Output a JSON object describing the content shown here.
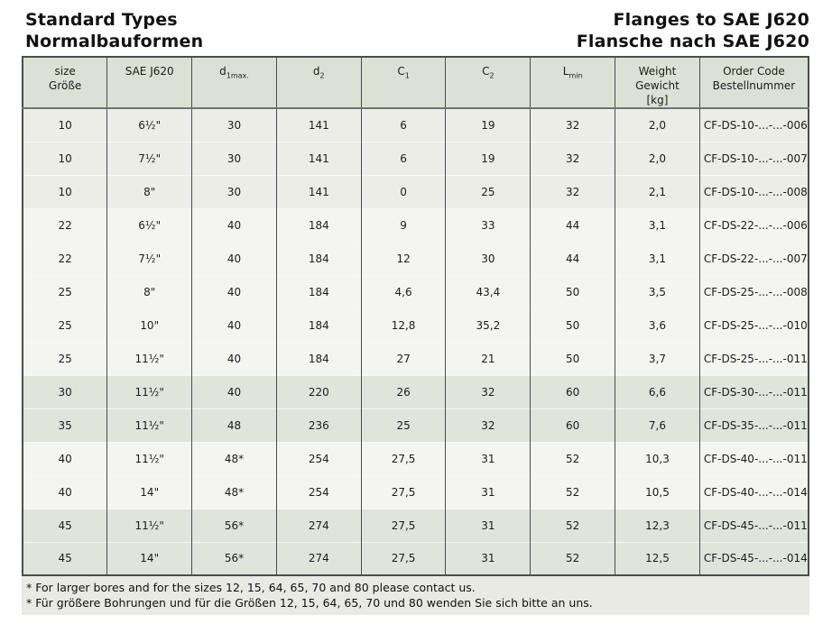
{
  "page": {
    "title_left_line1": "Standard Types",
    "title_left_line2": "Normalbauformen",
    "title_right_line1": "Flanges to SAE J620",
    "title_right_line2": "Flansche nach SAE J620"
  },
  "table": {
    "columns": [
      {
        "lines": [
          "size",
          "Größe"
        ]
      },
      {
        "lines": [
          "SAE J620"
        ]
      },
      {
        "base": "d",
        "sub": "1max."
      },
      {
        "base": "d",
        "sub": "2"
      },
      {
        "base": "C",
        "sub": "1"
      },
      {
        "base": "C",
        "sub": "2"
      },
      {
        "base": "L",
        "sub": "min"
      },
      {
        "lines": [
          "Weight",
          "Gewicht",
          "[kg]"
        ]
      },
      {
        "lines": [
          "Order Code",
          "Bestellnummer"
        ]
      }
    ],
    "rows": [
      {
        "band": "a",
        "cells": [
          "10",
          "6½\"",
          "30",
          "141",
          "6",
          "19",
          "32",
          "2,0",
          "CF-DS-10-...-...-006"
        ]
      },
      {
        "band": "a",
        "cells": [
          "10",
          "7½\"",
          "30",
          "141",
          "6",
          "19",
          "32",
          "2,0",
          "CF-DS-10-...-...-007"
        ]
      },
      {
        "band": "a",
        "cells": [
          "10",
          "8\"",
          "30",
          "141",
          "0",
          "25",
          "32",
          "2,1",
          "CF-DS-10-...-...-008"
        ]
      },
      {
        "band": "b",
        "cells": [
          "22",
          "6½\"",
          "40",
          "184",
          "9",
          "33",
          "44",
          "3,1",
          "CF-DS-22-...-...-006"
        ]
      },
      {
        "band": "b",
        "cells": [
          "22",
          "7½\"",
          "40",
          "184",
          "12",
          "30",
          "44",
          "3,1",
          "CF-DS-22-...-...-007"
        ]
      },
      {
        "band": "b",
        "cells": [
          "25",
          "8\"",
          "40",
          "184",
          "4,6",
          "43,4",
          "50",
          "3,5",
          "CF-DS-25-...-...-008"
        ]
      },
      {
        "band": "b",
        "cells": [
          "25",
          "10\"",
          "40",
          "184",
          "12,8",
          "35,2",
          "50",
          "3,6",
          "CF-DS-25-...-...-010"
        ]
      },
      {
        "band": "b",
        "cells": [
          "25",
          "11½\"",
          "40",
          "184",
          "27",
          "21",
          "50",
          "3,7",
          "CF-DS-25-...-...-011"
        ]
      },
      {
        "band": "c",
        "cells": [
          "30",
          "11½\"",
          "40",
          "220",
          "26",
          "32",
          "60",
          "6,6",
          "CF-DS-30-...-...-011"
        ]
      },
      {
        "band": "c",
        "cells": [
          "35",
          "11½\"",
          "48",
          "236",
          "25",
          "32",
          "60",
          "7,6",
          "CF-DS-35-...-...-011"
        ]
      },
      {
        "band": "b",
        "cells": [
          "40",
          "11½\"",
          "48*",
          "254",
          "27,5",
          "31",
          "52",
          "10,3",
          "CF-DS-40-...-...-011"
        ]
      },
      {
        "band": "b",
        "cells": [
          "40",
          "14\"",
          "48*",
          "254",
          "27,5",
          "31",
          "52",
          "10,5",
          "CF-DS-40-...-...-014"
        ]
      },
      {
        "band": "c",
        "cells": [
          "45",
          "11½\"",
          "56*",
          "274",
          "27,5",
          "31",
          "52",
          "12,3",
          "CF-DS-45-...-...-011"
        ]
      },
      {
        "band": "c",
        "cells": [
          "45",
          "14\"",
          "56*",
          "274",
          "27,5",
          "31",
          "52",
          "12,5",
          "CF-DS-45-...-...-014"
        ]
      }
    ]
  },
  "footnotes": {
    "en": "* For larger bores and for the sizes 12, 15, 64, 65, 70 and 80 please contact us.",
    "de": "* Für größere Bohrungen und für die Größen 12, 15, 64, 65, 70 und 80 wenden Sie sich bitte an uns."
  },
  "colors": {
    "header_bg": "#dde0d5",
    "band_a": "#ebede6",
    "band_b": "#f4f5f1",
    "band_c": "#e1e4da",
    "footnote_bg": "#e8eae3",
    "border": "#4c4c4c",
    "text": "#1c1c1c"
  }
}
